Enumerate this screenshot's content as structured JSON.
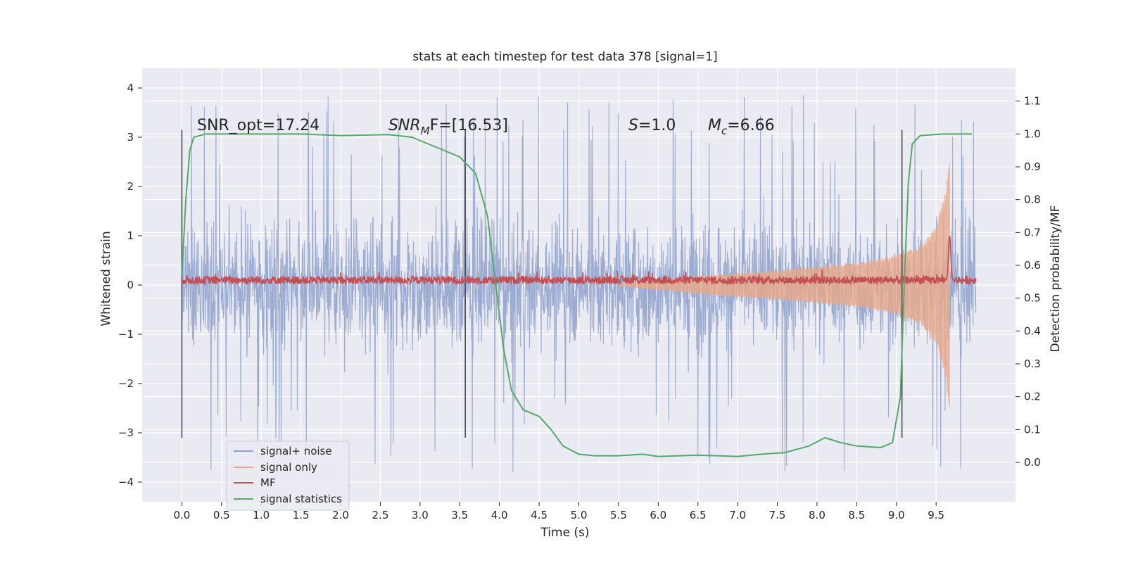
{
  "chart_data": {
    "type": "line",
    "title": "stats at each timestep for test data 378 [signal=1]",
    "xlabel": "Time (s)",
    "ylabel": "Whitened strain",
    "ylabel_right": "Detection probability/MF",
    "xlim": [
      -0.5,
      10.5
    ],
    "ylim": [
      -4.4,
      4.4
    ],
    "ylim_right": [
      -0.12,
      1.2
    ],
    "x_ticks": [
      "0.0",
      "0.5",
      "1.0",
      "1.5",
      "2.0",
      "2.5",
      "3.0",
      "3.5",
      "4.0",
      "4.5",
      "5.0",
      "5.5",
      "6.0",
      "6.5",
      "7.0",
      "7.5",
      "8.0",
      "8.5",
      "9.0",
      "9.5"
    ],
    "x_tick_values": [
      0,
      0.5,
      1,
      1.5,
      2,
      2.5,
      3,
      3.5,
      4,
      4.5,
      5,
      5.5,
      6,
      6.5,
      7,
      7.5,
      8,
      8.5,
      9,
      9.5
    ],
    "y_ticks": [
      "−4",
      "−3",
      "−2",
      "−1",
      "0",
      "1",
      "2",
      "3",
      "4"
    ],
    "y_tick_values": [
      -4,
      -3,
      -2,
      -1,
      0,
      1,
      2,
      3,
      4
    ],
    "y_ticks_right": [
      "0.0",
      "0.1",
      "0.2",
      "0.3",
      "0.4",
      "0.5",
      "0.6",
      "0.7",
      "0.8",
      "0.9",
      "1.0",
      "1.1"
    ],
    "y_tick_values_right": [
      0,
      0.1,
      0.2,
      0.3,
      0.4,
      0.5,
      0.6,
      0.7,
      0.8,
      0.9,
      1.0,
      1.1
    ],
    "grid": true,
    "legend_position": "lower-left",
    "annotations": {
      "snr_opt": "SNR_opt=17.24",
      "snr_mf_italic": "SNR",
      "snr_mf_sub": "M",
      "snr_mf_rest": "F=[16.53]",
      "s_italic": "S",
      "s_rest": "=1.0",
      "mc_italic": "M",
      "mc_sub": "c",
      "mc_rest": "=6.66"
    },
    "vertical_markers_x": [
      0.0,
      3.57,
      9.07
    ],
    "vertical_markers_yrange": [
      -3.1,
      3.15
    ],
    "series": [
      {
        "name": "signal+ noise",
        "color": "#8da0cb",
        "style": "noise-band",
        "x_range": [
          0,
          10
        ],
        "envelope_typical": [
          -1.9,
          1.9
        ],
        "peak_extremes": [
          -3.9,
          4.05
        ]
      },
      {
        "name": "signal only",
        "color": "#e8a98a",
        "style": "chirp",
        "x_range": [
          5.5,
          9.67
        ],
        "peak_amplitude": 2.5,
        "envelope": [
          [
            5.5,
            0.02
          ],
          [
            6.5,
            0.18
          ],
          [
            7.5,
            0.3
          ],
          [
            8.5,
            0.45
          ],
          [
            9.0,
            0.6
          ],
          [
            9.3,
            0.8
          ],
          [
            9.5,
            1.2
          ],
          [
            9.6,
            1.8
          ],
          [
            9.66,
            2.5
          ]
        ]
      },
      {
        "name": "MF",
        "color": "#c44e52",
        "style": "line",
        "x_range": [
          0,
          10
        ],
        "baseline": 0.1,
        "spike": {
          "x": 9.67,
          "y": 1.0
        }
      },
      {
        "name": "signal statistics",
        "color": "#55a868",
        "style": "line",
        "axis": "right",
        "points": [
          [
            0.0,
            0.57
          ],
          [
            0.05,
            0.8
          ],
          [
            0.1,
            0.95
          ],
          [
            0.15,
            0.99
          ],
          [
            0.3,
            1.0
          ],
          [
            1.5,
            1.0
          ],
          [
            2.0,
            0.995
          ],
          [
            2.6,
            0.998
          ],
          [
            2.9,
            0.99
          ],
          [
            3.2,
            0.96
          ],
          [
            3.5,
            0.93
          ],
          [
            3.7,
            0.88
          ],
          [
            3.85,
            0.75
          ],
          [
            3.95,
            0.55
          ],
          [
            4.05,
            0.35
          ],
          [
            4.15,
            0.22
          ],
          [
            4.3,
            0.16
          ],
          [
            4.5,
            0.14
          ],
          [
            4.65,
            0.1
          ],
          [
            4.8,
            0.05
          ],
          [
            5.0,
            0.025
          ],
          [
            5.2,
            0.02
          ],
          [
            5.5,
            0.02
          ],
          [
            5.8,
            0.025
          ],
          [
            6.0,
            0.018
          ],
          [
            6.5,
            0.022
          ],
          [
            7.0,
            0.018
          ],
          [
            7.3,
            0.025
          ],
          [
            7.6,
            0.03
          ],
          [
            7.9,
            0.05
          ],
          [
            8.1,
            0.075
          ],
          [
            8.3,
            0.06
          ],
          [
            8.5,
            0.05
          ],
          [
            8.8,
            0.045
          ],
          [
            8.95,
            0.06
          ],
          [
            9.05,
            0.2
          ],
          [
            9.1,
            0.55
          ],
          [
            9.15,
            0.85
          ],
          [
            9.2,
            0.97
          ],
          [
            9.3,
            0.995
          ],
          [
            9.6,
            1.0
          ],
          [
            9.95,
            1.0
          ]
        ]
      }
    ]
  }
}
